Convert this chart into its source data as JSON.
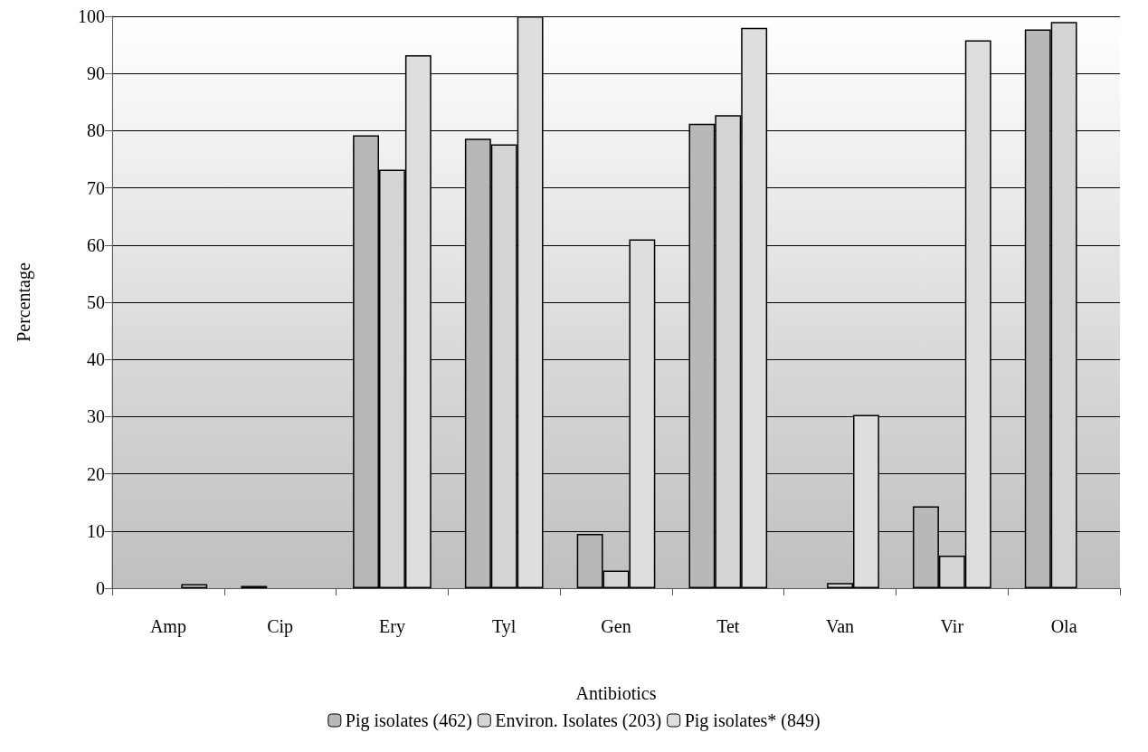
{
  "chart_data": {
    "type": "bar",
    "xlabel": "Antibiotics",
    "ylabel": "Percentage",
    "categories": [
      "Amp",
      "Cip",
      "Ery",
      "Tyl",
      "Gen",
      "Tet",
      "Van",
      "Vir",
      "Ola"
    ],
    "series": [
      {
        "name": "Pig isolates (462)",
        "color": "#b8b8b8",
        "values": [
          0,
          0.4,
          79.2,
          78.6,
          9.5,
          81.2,
          0,
          14.3,
          97.7
        ]
      },
      {
        "name": "Environ. Isolates (203)",
        "color": "#d4d4d4",
        "values": [
          0,
          0,
          73.2,
          77.6,
          3.1,
          82.7,
          0.9,
          5.7,
          99
        ]
      },
      {
        "name": "Pig isolates* (849)",
        "color": "#dedede",
        "values": [
          0.7,
          0,
          93.2,
          100,
          61,
          98,
          30.3,
          95.8,
          null
        ]
      }
    ],
    "ylim": [
      0,
      100
    ],
    "yticks": [
      0,
      10,
      20,
      30,
      40,
      50,
      60,
      70,
      80,
      90,
      100
    ],
    "grid": "y",
    "legend": "bottom"
  }
}
